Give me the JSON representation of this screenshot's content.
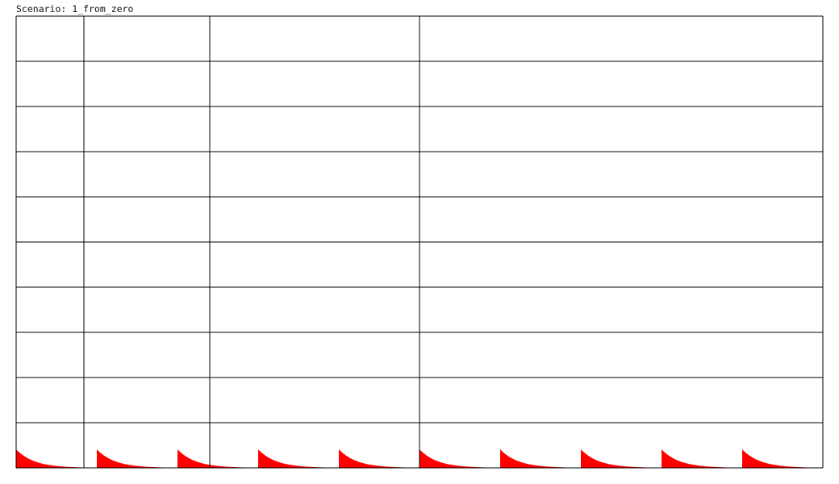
{
  "scenario_label": "Scenario: 1_from_zero",
  "colors": {
    "fill": "#ff0000",
    "grid": "#000000",
    "background": "#ffffff"
  },
  "chart_data": {
    "type": "area",
    "title": "",
    "xlabel": "",
    "ylabel": "",
    "grid": true,
    "columns": [
      {
        "label": "",
        "span": 0.84
      },
      {
        "label": "",
        "span": 1.56
      },
      {
        "label": "",
        "span": 2.6
      },
      {
        "label": "",
        "span": 5.0
      }
    ],
    "rows": 10,
    "xlim": [
      0,
      10
    ],
    "ylim": [
      0,
      10
    ],
    "pulse": {
      "start_times": [
        0,
        1,
        2,
        3,
        4,
        5,
        6,
        7,
        8,
        9
      ],
      "peak": 0.41,
      "decay_tau": 0.22,
      "duration": 1.0
    }
  }
}
